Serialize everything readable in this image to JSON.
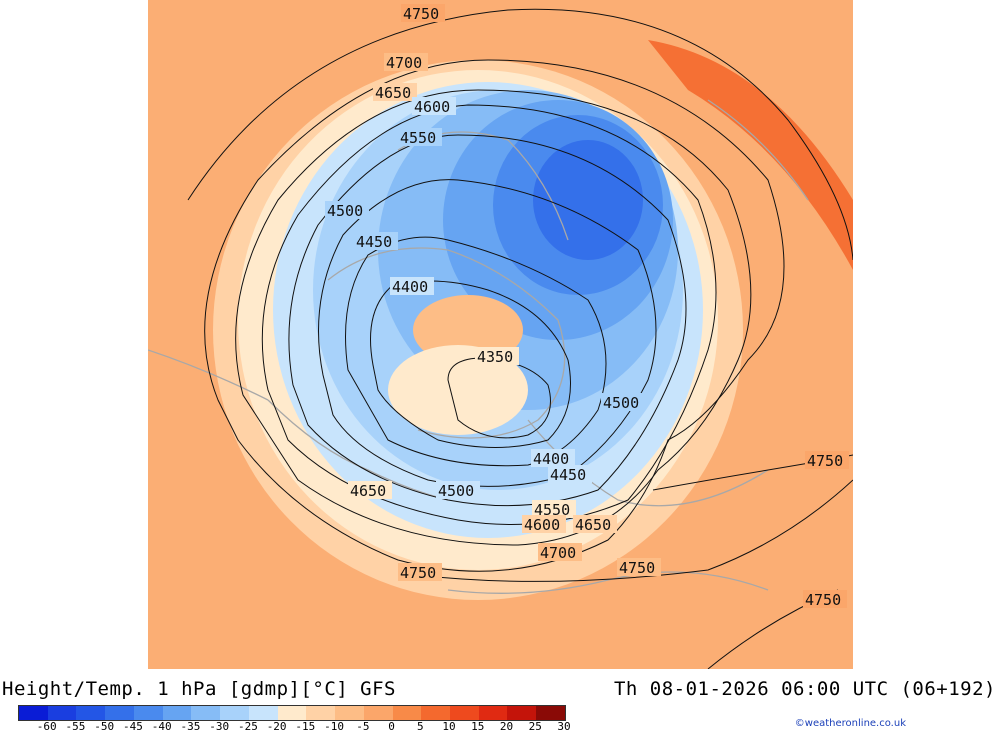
{
  "header": {
    "title": "Height/Temp. 1 hPa [gdmp][°C] GFS",
    "valid_time": "Th 08-01-2026 06:00 UTC (06+192)"
  },
  "legend": {
    "ticks": [
      "-60",
      "-55",
      "-50",
      "-45",
      "-40",
      "-35",
      "-30",
      "-25",
      "-20",
      "-15",
      "-10",
      "-5",
      "0",
      "5",
      "10",
      "15",
      "20",
      "25",
      "30"
    ],
    "colors": [
      "#0a1cd6",
      "#1a3ee0",
      "#2356e6",
      "#3470ea",
      "#4a8aee",
      "#66a4f2",
      "#86bcf6",
      "#a8d2fa",
      "#c8e4fc",
      "#ffeacc",
      "#ffd2a6",
      "#fdbd86",
      "#fba66a",
      "#f88a48",
      "#f4692e",
      "#ee4a1e",
      "#e02a12",
      "#c4140a",
      "#8a0a06"
    ],
    "credit": "©weatheronline.co.uk"
  },
  "contours": [
    {
      "label": "4750"
    },
    {
      "label": "4700"
    },
    {
      "label": "4650"
    },
    {
      "label": "4600"
    },
    {
      "label": "4550"
    },
    {
      "label": "4500"
    },
    {
      "label": "4450"
    },
    {
      "label": "4400"
    },
    {
      "label": "4350"
    }
  ],
  "contour_labels": {
    "l4750a": "4750",
    "l4700a": "4700",
    "l4650a": "4650",
    "l4600a": "4600",
    "l4550a": "4550",
    "l4500a": "4500",
    "l4450a": "4450",
    "l4400a": "4400",
    "l4350": "4350",
    "l4500b": "4500",
    "l4400b": "4400",
    "l4450b": "4450",
    "l4650b": "4650",
    "l4500c": "4500",
    "l4550b": "4550",
    "l4600b": "4600",
    "l4650c": "4650",
    "l4700b": "4700",
    "l4750b": "4750",
    "l4750c": "4750",
    "l4750d": "4750",
    "l4750e": "4750"
  }
}
